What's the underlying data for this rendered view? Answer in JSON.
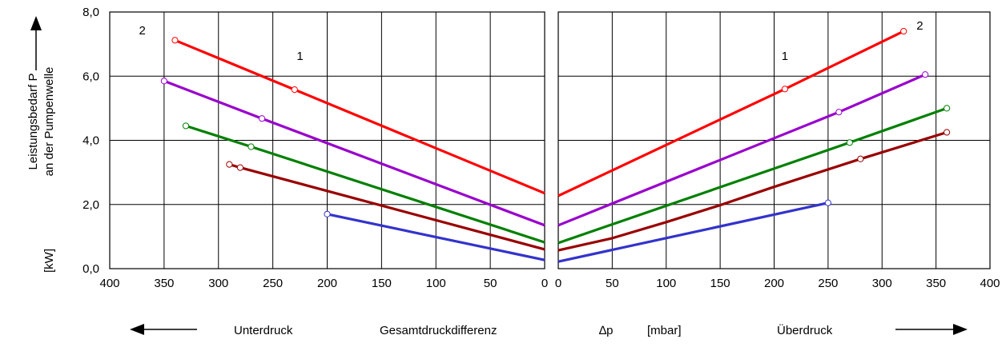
{
  "chart_data": {
    "type": "line",
    "ylabel_line1": "Leistungsbedarf P",
    "ylabel_line2": "an der Pumpenwelle",
    "yunit": "[kW]",
    "xlabel": "Gesamtdruckdifferenz",
    "xsymbol": "∆p",
    "xunit": "[mbar]",
    "left_label": "Unterdruck",
    "right_label": "Überdruck",
    "ylim": [
      0,
      8
    ],
    "yticks": [
      "0,0",
      "2,0",
      "4,0",
      "6,0",
      "8,0"
    ],
    "left_panel": {
      "xlim": [
        400,
        0
      ],
      "xticks": [
        "400",
        "350",
        "300",
        "250",
        "200",
        "150",
        "100",
        "50",
        "0"
      ],
      "annotations": [
        {
          "text": "2",
          "x": 370,
          "y": 7.3
        },
        {
          "text": "1",
          "x": 225,
          "y": 6.5
        }
      ],
      "series": [
        {
          "color": "#ff0000",
          "points": [
            [
              340,
              7.12
            ],
            [
              230,
              5.58
            ],
            [
              0,
              2.35
            ]
          ],
          "markers": [
            [
              340,
              7.12
            ],
            [
              230,
              5.58
            ]
          ]
        },
        {
          "color": "#9900cc",
          "points": [
            [
              350,
              5.85
            ],
            [
              260,
              4.68
            ],
            [
              0,
              1.35
            ]
          ],
          "markers": [
            [
              350,
              5.85
            ],
            [
              260,
              4.68
            ]
          ]
        },
        {
          "color": "#008000",
          "points": [
            [
              330,
              4.45
            ],
            [
              270,
              3.8
            ],
            [
              0,
              0.82
            ]
          ],
          "markers": [
            [
              330,
              4.45
            ],
            [
              270,
              3.8
            ]
          ]
        },
        {
          "color": "#990000",
          "points": [
            [
              290,
              3.25
            ],
            [
              280,
              3.15
            ],
            [
              0,
              0.6
            ]
          ],
          "markers": [
            [
              290,
              3.25
            ],
            [
              280,
              3.15
            ]
          ]
        },
        {
          "color": "#3333cc",
          "points": [
            [
              200,
              1.7
            ],
            [
              0,
              0.27
            ]
          ],
          "markers": [
            [
              200,
              1.7
            ]
          ]
        }
      ]
    },
    "right_panel": {
      "xlim": [
        0,
        400
      ],
      "xticks": [
        "0",
        "50",
        "100",
        "150",
        "200",
        "250",
        "300",
        "350",
        "400"
      ],
      "annotations": [
        {
          "text": "1",
          "x": 210,
          "y": 6.5
        },
        {
          "text": "2",
          "x": 335,
          "y": 7.45
        }
      ],
      "series": [
        {
          "color": "#ff0000",
          "points": [
            [
              0,
              2.27
            ],
            [
              210,
              5.6
            ],
            [
              320,
              7.4
            ]
          ],
          "markers": [
            [
              210,
              5.6
            ],
            [
              320,
              7.4
            ]
          ]
        },
        {
          "color": "#9900cc",
          "points": [
            [
              0,
              1.35
            ],
            [
              260,
              4.88
            ],
            [
              340,
              6.05
            ]
          ],
          "markers": [
            [
              260,
              4.88
            ],
            [
              340,
              6.05
            ]
          ]
        },
        {
          "color": "#008000",
          "points": [
            [
              0,
              0.8
            ],
            [
              270,
              3.93
            ],
            [
              360,
              5.0
            ]
          ],
          "markers": [
            [
              270,
              3.93
            ],
            [
              360,
              5.0
            ]
          ]
        },
        {
          "color": "#990000",
          "points": [
            [
              0,
              0.57
            ],
            [
              50,
              0.95
            ],
            [
              100,
              1.45
            ],
            [
              150,
              1.98
            ],
            [
              200,
              2.55
            ],
            [
              280,
              3.42
            ],
            [
              360,
              4.25
            ]
          ],
          "markers": [
            [
              280,
              3.42
            ],
            [
              360,
              4.25
            ]
          ]
        },
        {
          "color": "#3333cc",
          "points": [
            [
              0,
              0.22
            ],
            [
              250,
              2.05
            ]
          ],
          "markers": [
            [
              250,
              2.05
            ]
          ]
        }
      ]
    }
  }
}
